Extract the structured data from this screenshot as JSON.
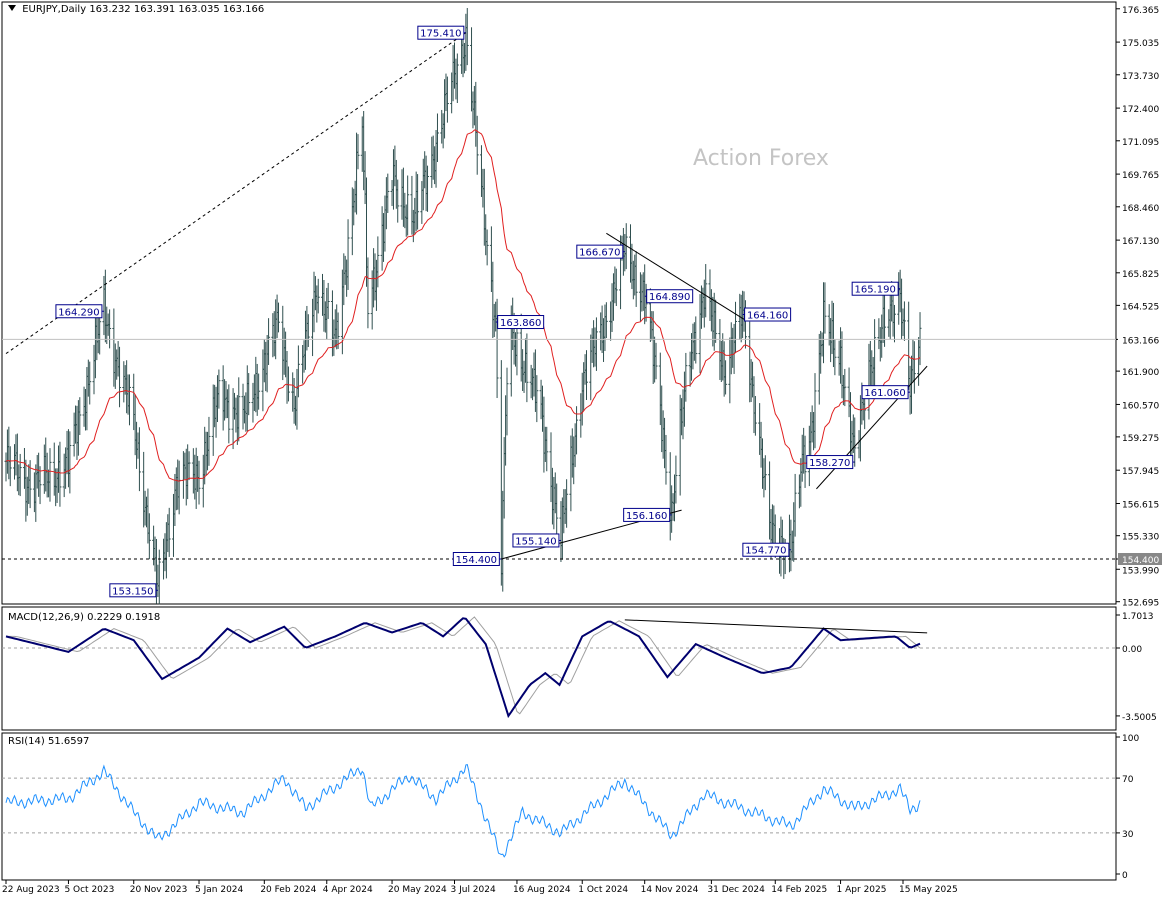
{
  "header": {
    "symbol": "EURJPY,Daily",
    "ohlc": "163.232 163.391 163.035 163.166"
  },
  "watermark": "Action Forex",
  "colors": {
    "bars": "#2f4f4f",
    "ma": "#e02020",
    "macd": "#00006e",
    "macd_signal": "#a0a0a0",
    "rsi": "#1e90ff",
    "label_border": "#00008b",
    "label_text": "#00008b"
  },
  "chart_data": [
    {
      "type": "candlestick",
      "series": "EURJPY daily price bars with moving average",
      "y_ticks": [
        "176.365",
        "175.035",
        "173.730",
        "172.400",
        "171.095",
        "169.765",
        "168.460",
        "167.130",
        "165.825",
        "164.525",
        "163.166",
        "161.900",
        "160.570",
        "159.275",
        "157.945",
        "156.615",
        "155.330",
        "154.400",
        "153.990",
        "152.695"
      ],
      "current_price": "163.166",
      "support_line_price": "154.400",
      "x_ticks": [
        "22 Aug 2023",
        "5 Oct 2023",
        "20 Nov 2023",
        "5 Jan 2024",
        "20 Feb 2024",
        "4 Apr 2024",
        "20 May 2024",
        "3 Jul 2024",
        "16 Aug 2024",
        "1 Oct 2024",
        "14 Nov 2024",
        "31 Dec 2024",
        "14 Feb 2025",
        "1 Apr 2025",
        "15 May 2025"
      ],
      "anchors": [
        {
          "date": "2023-08-22",
          "price": 158.3
        },
        {
          "date": "2023-09-10",
          "price": 157.3
        },
        {
          "date": "2023-10-05",
          "price": 158.2
        },
        {
          "date": "2023-10-30",
          "price": 164.29
        },
        {
          "date": "2023-11-20",
          "price": 159.8
        },
        {
          "date": "2023-12-07",
          "price": 153.15
        },
        {
          "date": "2023-12-20",
          "price": 157.5
        },
        {
          "date": "2024-01-05",
          "price": 157.8
        },
        {
          "date": "2024-01-20",
          "price": 161.0
        },
        {
          "date": "2024-02-05",
          "price": 160.0
        },
        {
          "date": "2024-03-01",
          "price": 163.8
        },
        {
          "date": "2024-03-12",
          "price": 160.5
        },
        {
          "date": "2024-03-28",
          "price": 165.4
        },
        {
          "date": "2024-04-10",
          "price": 163.0
        },
        {
          "date": "2024-04-29",
          "price": 171.6
        },
        {
          "date": "2024-05-03",
          "price": 164.5
        },
        {
          "date": "2024-05-20",
          "price": 169.5
        },
        {
          "date": "2024-06-05",
          "price": 168.0
        },
        {
          "date": "2024-06-20",
          "price": 171.0
        },
        {
          "date": "2024-07-11",
          "price": 175.41
        },
        {
          "date": "2024-07-20",
          "price": 170.0
        },
        {
          "date": "2024-08-01",
          "price": 163.86
        },
        {
          "date": "2024-08-05",
          "price": 154.4
        },
        {
          "date": "2024-08-10",
          "price": 163.5
        },
        {
          "date": "2024-08-16",
          "price": 163.0
        },
        {
          "date": "2024-09-01",
          "price": 160.5
        },
        {
          "date": "2024-09-16",
          "price": 155.14
        },
        {
          "date": "2024-10-01",
          "price": 161.5
        },
        {
          "date": "2024-10-15",
          "price": 163.5
        },
        {
          "date": "2024-10-31",
          "price": 166.67
        },
        {
          "date": "2024-11-14",
          "price": 164.89
        },
        {
          "date": "2024-11-25",
          "price": 160.5
        },
        {
          "date": "2024-12-03",
          "price": 156.16
        },
        {
          "date": "2024-12-15",
          "price": 162.5
        },
        {
          "date": "2024-12-26",
          "price": 164.9
        },
        {
          "date": "2025-01-10",
          "price": 162.0
        },
        {
          "date": "2025-01-22",
          "price": 164.16
        },
        {
          "date": "2025-02-01",
          "price": 160.0
        },
        {
          "date": "2025-02-10",
          "price": 155.5
        },
        {
          "date": "2025-02-25",
          "price": 154.77
        },
        {
          "date": "2025-03-05",
          "price": 158.27
        },
        {
          "date": "2025-03-11",
          "price": 159.5
        },
        {
          "date": "2025-03-20",
          "price": 163.8
        },
        {
          "date": "2025-04-01",
          "price": 162.5
        },
        {
          "date": "2025-04-11",
          "price": 158.27
        },
        {
          "date": "2025-04-20",
          "price": 162.0
        },
        {
          "date": "2025-05-01",
          "price": 163.5
        },
        {
          "date": "2025-05-13",
          "price": 165.19
        },
        {
          "date": "2025-05-20",
          "price": 161.06
        },
        {
          "date": "2025-05-27",
          "price": 163.17
        }
      ],
      "annotations": [
        {
          "text": "175.410",
          "date": "2024-07-11",
          "price": 175.41,
          "side": "left"
        },
        {
          "text": "164.290",
          "date": "2023-10-30",
          "price": 164.29,
          "side": "left"
        },
        {
          "text": "163.860",
          "date": "2024-08-01",
          "price": 163.86,
          "side": "right"
        },
        {
          "text": "166.670",
          "date": "2024-10-31",
          "price": 166.67,
          "side": "left"
        },
        {
          "text": "164.890",
          "date": "2024-11-14",
          "price": 164.89,
          "side": "right"
        },
        {
          "text": "164.160",
          "date": "2025-01-22",
          "price": 164.16,
          "side": "right"
        },
        {
          "text": "165.190",
          "date": "2025-05-13",
          "price": 165.19,
          "side": "left"
        },
        {
          "text": "161.060",
          "date": "2025-05-20",
          "price": 161.06,
          "side": "left"
        },
        {
          "text": "158.270",
          "date": "2025-04-11",
          "price": 158.27,
          "side": "left"
        },
        {
          "text": "156.160",
          "date": "2024-12-03",
          "price": 156.16,
          "side": "left"
        },
        {
          "text": "155.140",
          "date": "2024-09-16",
          "price": 155.14,
          "side": "left"
        },
        {
          "text": "154.400",
          "date": "2024-08-05",
          "price": 154.4,
          "side": "left"
        },
        {
          "text": "153.150",
          "date": "2023-12-07",
          "price": 153.15,
          "side": "left"
        },
        {
          "text": "154.770",
          "date": "2025-02-25",
          "price": 154.77,
          "side": "left"
        }
      ],
      "trendlines": [
        {
          "style": "dashed",
          "from": {
            "date": "2023-08-22",
            "price": 162.6
          },
          "to": {
            "date": "2024-07-11",
            "price": 175.41
          }
        },
        {
          "style": "solid",
          "from": {
            "date": "2024-08-05",
            "price": 154.4
          },
          "to": {
            "date": "2024-12-10",
            "price": 156.35
          }
        },
        {
          "style": "solid",
          "from": {
            "date": "2024-10-18",
            "price": 167.4
          },
          "to": {
            "date": "2025-01-25",
            "price": 163.9
          }
        },
        {
          "style": "solid",
          "from": {
            "date": "2025-03-15",
            "price": 157.2
          },
          "to": {
            "date": "2025-06-01",
            "price": 162.1
          }
        }
      ]
    },
    {
      "type": "line",
      "title": "MACD(12,26,9) 0.2229 0.1918",
      "y_ticks": [
        "1.7013",
        "0.00",
        "-3.5005"
      ],
      "series": [
        {
          "name": "MACD",
          "anchors": [
            {
              "date": "2023-08-22",
              "value": 0.6
            },
            {
              "date": "2023-10-05",
              "value": -0.2
            },
            {
              "date": "2023-10-30",
              "value": 1.0
            },
            {
              "date": "2023-11-20",
              "value": 0.4
            },
            {
              "date": "2023-12-10",
              "value": -1.6
            },
            {
              "date": "2024-01-05",
              "value": -0.5
            },
            {
              "date": "2024-01-25",
              "value": 1.0
            },
            {
              "date": "2024-02-10",
              "value": 0.3
            },
            {
              "date": "2024-03-05",
              "value": 1.1
            },
            {
              "date": "2024-03-20",
              "value": 0.0
            },
            {
              "date": "2024-04-10",
              "value": 0.6
            },
            {
              "date": "2024-05-01",
              "value": 1.3
            },
            {
              "date": "2024-05-20",
              "value": 0.8
            },
            {
              "date": "2024-06-10",
              "value": 1.3
            },
            {
              "date": "2024-06-25",
              "value": 0.6
            },
            {
              "date": "2024-07-10",
              "value": 1.6
            },
            {
              "date": "2024-07-25",
              "value": 0.2
            },
            {
              "date": "2024-08-10",
              "value": -3.5
            },
            {
              "date": "2024-08-25",
              "value": -1.9
            },
            {
              "date": "2024-09-05",
              "value": -1.3
            },
            {
              "date": "2024-09-15",
              "value": -1.9
            },
            {
              "date": "2024-10-01",
              "value": 0.6
            },
            {
              "date": "2024-10-20",
              "value": 1.4
            },
            {
              "date": "2024-11-10",
              "value": 0.6
            },
            {
              "date": "2024-11-30",
              "value": -1.5
            },
            {
              "date": "2024-12-20",
              "value": 0.2
            },
            {
              "date": "2025-01-10",
              "value": -0.5
            },
            {
              "date": "2025-02-05",
              "value": -1.3
            },
            {
              "date": "2025-02-25",
              "value": -1.0
            },
            {
              "date": "2025-03-20",
              "value": 1.0
            },
            {
              "date": "2025-04-01",
              "value": 0.4
            },
            {
              "date": "2025-04-20",
              "value": 0.5
            },
            {
              "date": "2025-05-10",
              "value": 0.6
            },
            {
              "date": "2025-05-20",
              "value": 0.0
            },
            {
              "date": "2025-05-27",
              "value": 0.2229
            }
          ]
        },
        {
          "name": "Signal",
          "lag_days": 7
        }
      ],
      "trendline": {
        "from": {
          "date": "2024-10-31",
          "value": 1.45
        },
        "to": {
          "date": "2025-06-01",
          "value": 0.78
        }
      }
    },
    {
      "type": "line",
      "title": "RSI(14) 51.6597",
      "y_ticks": [
        "100",
        "70",
        "30",
        "0"
      ],
      "levels": [
        70,
        30
      ],
      "series": [
        {
          "name": "RSI",
          "anchors": [
            {
              "date": "2023-08-22",
              "value": 52
            },
            {
              "date": "2023-10-05",
              "value": 55
            },
            {
              "date": "2023-10-30",
              "value": 75
            },
            {
              "date": "2023-11-20",
              "value": 45
            },
            {
              "date": "2023-12-07",
              "value": 25
            },
            {
              "date": "2024-01-05",
              "value": 52
            },
            {
              "date": "2024-02-05",
              "value": 45
            },
            {
              "date": "2024-03-05",
              "value": 70
            },
            {
              "date": "2024-03-20",
              "value": 48
            },
            {
              "date": "2024-04-29",
              "value": 78
            },
            {
              "date": "2024-05-05",
              "value": 48
            },
            {
              "date": "2024-06-01",
              "value": 72
            },
            {
              "date": "2024-06-20",
              "value": 55
            },
            {
              "date": "2024-07-11",
              "value": 78
            },
            {
              "date": "2024-08-05",
              "value": 12
            },
            {
              "date": "2024-08-20",
              "value": 45
            },
            {
              "date": "2024-09-16",
              "value": 30
            },
            {
              "date": "2024-10-31",
              "value": 68
            },
            {
              "date": "2024-12-03",
              "value": 28
            },
            {
              "date": "2024-12-26",
              "value": 58
            },
            {
              "date": "2025-02-25",
              "value": 35
            },
            {
              "date": "2025-03-20",
              "value": 62
            },
            {
              "date": "2025-04-11",
              "value": 48
            },
            {
              "date": "2025-05-13",
              "value": 62
            },
            {
              "date": "2025-05-20",
              "value": 47
            },
            {
              "date": "2025-05-27",
              "value": 51.66
            }
          ]
        }
      ]
    }
  ]
}
